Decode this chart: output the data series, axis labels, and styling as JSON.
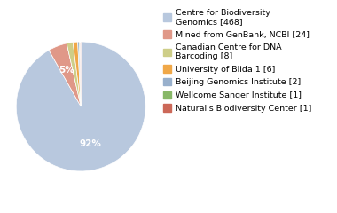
{
  "labels": [
    "Centre for Biodiversity\nGenomics [468]",
    "Mined from GenBank, NCBI [24]",
    "Canadian Centre for DNA\nBarcoding [8]",
    "University of Blida 1 [6]",
    "Beijing Genomics Institute [2]",
    "Wellcome Sanger Institute [1]",
    "Naturalis Biodiversity Center [1]"
  ],
  "values": [
    468,
    24,
    8,
    6,
    2,
    1,
    1
  ],
  "colors": [
    "#b8c8de",
    "#e09888",
    "#cece88",
    "#f0a848",
    "#98b0cc",
    "#88b868",
    "#cc6858"
  ],
  "autopct_threshold": 3.5,
  "legend_fontsize": 6.8,
  "label_fontsize": 7.5,
  "background_color": "#ffffff"
}
